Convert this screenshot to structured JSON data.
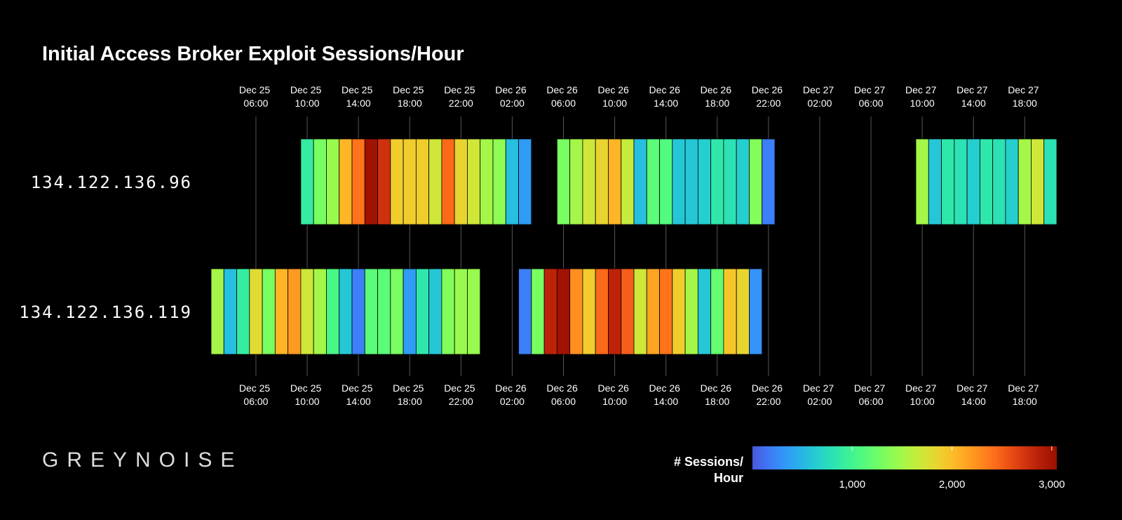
{
  "chart_data": {
    "type": "heatmap-timeline",
    "title": "Initial Access Broker Exploit Sessions/Hour",
    "logo": "GREYNOISE",
    "xlim": [
      "Dec 25 02:30",
      "Dec 27 20:30"
    ],
    "xticks": [
      "Dec 25 06:00",
      "Dec 25 10:00",
      "Dec 25 14:00",
      "Dec 25 18:00",
      "Dec 25 22:00",
      "Dec 26 02:00",
      "Dec 26 06:00",
      "Dec 26 10:00",
      "Dec 26 14:00",
      "Dec 26 18:00",
      "Dec 26 22:00",
      "Dec 27 02:00",
      "Dec 27 06:00",
      "Dec 27 10:00",
      "Dec 27 14:00",
      "Dec 27 18:00"
    ],
    "grid": true,
    "colormap": "turbo",
    "colorbar_label": [
      "# Sessions/",
      "Hour"
    ],
    "colorbar_lim": [
      0,
      3050
    ],
    "colorbar_ticks": [
      {
        "value": 1000,
        "label": "1,000"
      },
      {
        "value": 2000,
        "label": "2,000"
      },
      {
        "value": 3000,
        "label": "3,000"
      }
    ],
    "series": [
      {
        "name": "134.122.136.96",
        "x": [
          "Dec 25 10:00",
          "Dec 25 11:00",
          "Dec 25 12:00",
          "Dec 25 13:00",
          "Dec 25 14:00",
          "Dec 25 15:00",
          "Dec 25 16:00",
          "Dec 25 17:00",
          "Dec 25 18:00",
          "Dec 25 19:00",
          "Dec 25 20:00",
          "Dec 25 21:00",
          "Dec 25 22:00",
          "Dec 25 23:00",
          "Dec 26 00:00",
          "Dec 26 01:00",
          "Dec 26 02:00",
          "Dec 26 03:00",
          "Dec 26 06:00",
          "Dec 26 07:00",
          "Dec 26 08:00",
          "Dec 26 09:00",
          "Dec 26 10:00",
          "Dec 26 11:00",
          "Dec 26 12:00",
          "Dec 26 13:00",
          "Dec 26 14:00",
          "Dec 26 15:00",
          "Dec 26 16:00",
          "Dec 26 17:00",
          "Dec 26 18:00",
          "Dec 26 19:00",
          "Dec 26 20:00",
          "Dec 26 21:00",
          "Dec 26 22:00",
          "Dec 27 10:00",
          "Dec 27 11:00",
          "Dec 27 12:00",
          "Dec 27 13:00",
          "Dec 27 14:00",
          "Dec 27 15:00",
          "Dec 27 16:00",
          "Dec 27 17:00",
          "Dec 27 18:00",
          "Dec 27 19:00",
          "Dec 27 20:00"
        ],
        "values": [
          900,
          1300,
          1450,
          2050,
          2400,
          3000,
          2750,
          1900,
          1900,
          1900,
          1700,
          2450,
          1850,
          1700,
          1500,
          1400,
          550,
          350,
          1300,
          1500,
          1700,
          1850,
          2050,
          1650,
          550,
          1150,
          1100,
          600,
          600,
          650,
          850,
          800,
          650,
          1350,
          200,
          1500,
          600,
          850,
          800,
          650,
          850,
          800,
          650,
          1500,
          1700,
          800
        ]
      },
      {
        "name": "134.122.136.119",
        "x": [
          "Dec 25 03:00",
          "Dec 25 04:00",
          "Dec 25 05:00",
          "Dec 25 06:00",
          "Dec 25 07:00",
          "Dec 25 08:00",
          "Dec 25 09:00",
          "Dec 25 10:00",
          "Dec 25 11:00",
          "Dec 25 12:00",
          "Dec 25 13:00",
          "Dec 25 14:00",
          "Dec 25 15:00",
          "Dec 25 16:00",
          "Dec 25 17:00",
          "Dec 25 18:00",
          "Dec 25 19:00",
          "Dec 25 20:00",
          "Dec 25 21:00",
          "Dec 25 22:00",
          "Dec 25 23:00",
          "Dec 26 03:00",
          "Dec 26 04:00",
          "Dec 26 05:00",
          "Dec 26 06:00",
          "Dec 26 07:00",
          "Dec 26 08:00",
          "Dec 26 09:00",
          "Dec 26 10:00",
          "Dec 26 11:00",
          "Dec 26 12:00",
          "Dec 26 13:00",
          "Dec 26 14:00",
          "Dec 26 15:00",
          "Dec 26 16:00",
          "Dec 26 17:00",
          "Dec 26 18:00",
          "Dec 26 19:00",
          "Dec 26 20:00",
          "Dec 26 21:00"
        ],
        "values": [
          1500,
          550,
          900,
          1800,
          1300,
          2050,
          2200,
          1700,
          1500,
          1050,
          600,
          200,
          1150,
          1150,
          1300,
          350,
          850,
          600,
          1350,
          1450,
          1450,
          200,
          1300,
          2850,
          3000,
          2250,
          1900,
          2450,
          2850,
          2500,
          1700,
          2150,
          2400,
          1900,
          1500,
          600,
          1200,
          1950,
          1850,
          300
        ]
      }
    ]
  }
}
